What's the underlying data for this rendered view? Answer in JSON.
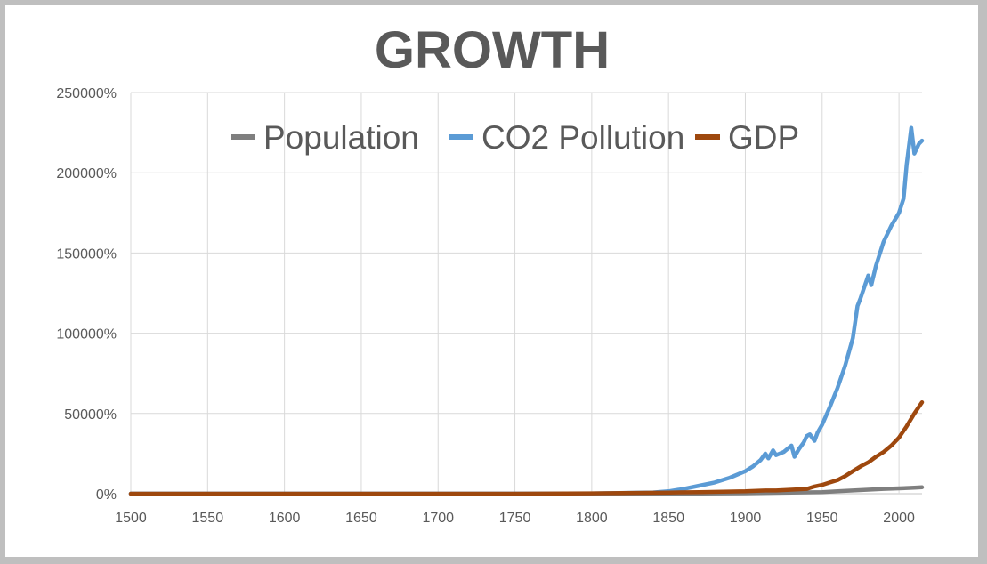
{
  "chart_data": {
    "type": "line",
    "title": "GROWTH",
    "xlabel": "",
    "ylabel": "",
    "xlim": [
      1500,
      2015
    ],
    "ylim": [
      0,
      250000
    ],
    "x_ticks": [
      1500,
      1550,
      1600,
      1650,
      1700,
      1750,
      1800,
      1850,
      1900,
      1950,
      2000
    ],
    "y_ticks": [
      0,
      50000,
      100000,
      150000,
      200000,
      250000
    ],
    "y_tick_labels": [
      "0%",
      "50000%",
      "100000%",
      "150000%",
      "200000%",
      "250000%"
    ],
    "grid": true,
    "legend_position": "top",
    "series": [
      {
        "name": "Population",
        "color": "#7f7f7f",
        "x": [
          1500,
          1600,
          1700,
          1750,
          1800,
          1850,
          1900,
          1925,
          1950,
          1960,
          1970,
          1980,
          1990,
          2000,
          2010,
          2015
        ],
        "values": [
          0,
          0,
          0,
          0,
          0,
          50,
          300,
          600,
          1000,
          1500,
          2000,
          2500,
          3000,
          3300,
          3700,
          4000
        ]
      },
      {
        "name": "CO2 Pollution",
        "color": "#5b9bd5",
        "x": [
          1500,
          1750,
          1800,
          1840,
          1850,
          1860,
          1870,
          1880,
          1890,
          1900,
          1905,
          1910,
          1913,
          1915,
          1918,
          1920,
          1925,
          1930,
          1932,
          1935,
          1938,
          1940,
          1942,
          1945,
          1947,
          1950,
          1955,
          1960,
          1965,
          1970,
          1973,
          1975,
          1980,
          1982,
          1985,
          1990,
          1995,
          2000,
          2003,
          2005,
          2008,
          2010,
          2013,
          2015
        ],
        "values": [
          0,
          0,
          100,
          800,
          1500,
          3000,
          5000,
          7000,
          10000,
          14000,
          17000,
          21000,
          25000,
          22000,
          27000,
          24000,
          26000,
          30000,
          23000,
          28000,
          32000,
          36000,
          37000,
          33000,
          38000,
          43000,
          54000,
          66000,
          80000,
          97000,
          117000,
          122000,
          136000,
          130000,
          142000,
          157000,
          167000,
          175000,
          184000,
          205000,
          228000,
          212000,
          218000,
          220000
        ]
      },
      {
        "name": "GDP",
        "color": "#9e480e",
        "x": [
          1500,
          1750,
          1800,
          1820,
          1850,
          1870,
          1900,
          1913,
          1920,
          1930,
          1940,
          1945,
          1950,
          1955,
          1960,
          1965,
          1970,
          1975,
          1980,
          1985,
          1990,
          1995,
          2000,
          2005,
          2010,
          2015
        ],
        "values": [
          0,
          0,
          200,
          400,
          700,
          1000,
          1500,
          2000,
          2000,
          2500,
          3000,
          4500,
          5500,
          7000,
          8500,
          11000,
          14000,
          17000,
          19500,
          23000,
          26000,
          30000,
          35000,
          42000,
          50000,
          57000
        ]
      }
    ]
  }
}
